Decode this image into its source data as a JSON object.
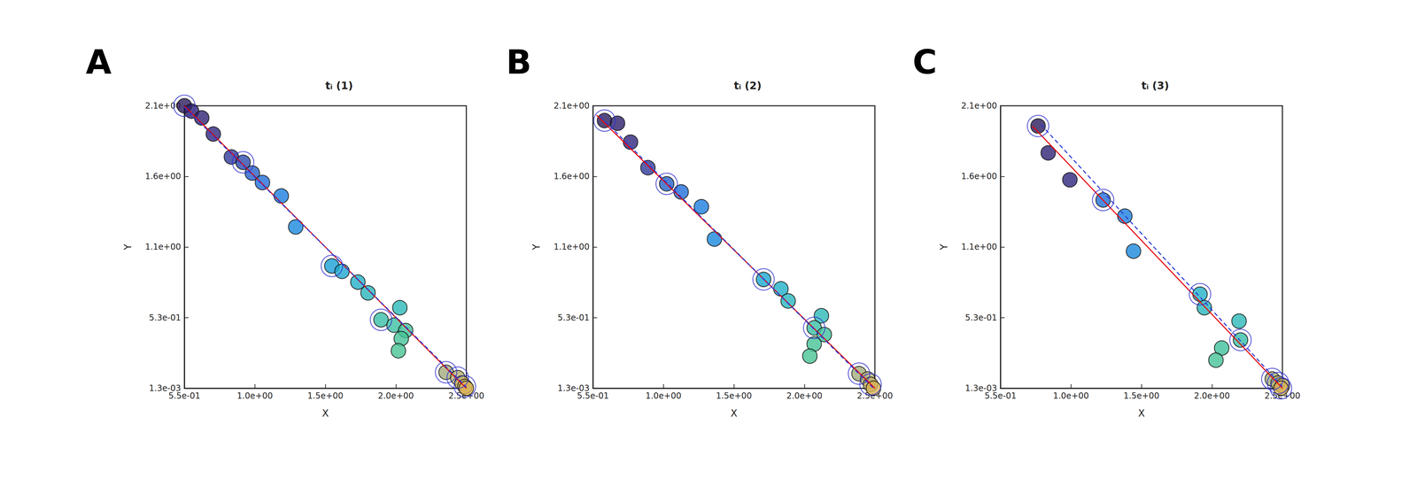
{
  "chart_data": [
    {
      "type": "scatter",
      "title": "tᵢ (1)",
      "annotation": "A",
      "x_label": "X",
      "y_label": "Y",
      "xlim": [
        0.55,
        2.5
      ],
      "ylim": [
        0.0013,
        2.1
      ],
      "xticks": [
        {
          "value": 0.55,
          "label": "5.5e-01"
        },
        {
          "value": 1.0375,
          "label": "1.0e+00"
        },
        {
          "value": 1.525,
          "label": "1.5e+00"
        },
        {
          "value": 2.0125,
          "label": "2.0e+00"
        },
        {
          "value": 2.5,
          "label": "2.5e+00"
        }
      ],
      "yticks": [
        {
          "value": 0.0013,
          "label": "1.3e-03"
        },
        {
          "value": 0.526,
          "label": "5.3e-01"
        },
        {
          "value": 1.0507,
          "label": "1.1e+00"
        },
        {
          "value": 1.5753,
          "label": "1.6e+00"
        },
        {
          "value": 2.1,
          "label": "2.1e+00"
        }
      ],
      "series": [
        {
          "type": "scatter",
          "marker": "circle",
          "x": [
            0.55,
            0.6,
            0.67,
            0.75,
            0.875,
            0.956,
            1.02,
            1.09,
            1.22,
            1.32,
            1.57,
            1.64,
            1.75,
            1.82,
            1.91,
            2.0,
            2.04,
            2.08,
            2.05,
            2.03,
            2.36,
            2.44,
            2.47,
            2.49,
            2.5
          ],
          "values": [
            2.1,
            2.06,
            2.01,
            1.89,
            1.72,
            1.68,
            1.6,
            1.53,
            1.43,
            1.2,
            0.91,
            0.87,
            0.79,
            0.71,
            0.51,
            0.47,
            0.6,
            0.43,
            0.37,
            0.28,
            0.12,
            0.08,
            0.04,
            0.015,
            0.0013
          ],
          "colors": [
            "#2a1b5e",
            "#2d1f6c",
            "#2e2274",
            "#30267e",
            "#2f3a9a",
            "#2c4aae",
            "#2560c8",
            "#1f6ed8",
            "#1b7ee0",
            "#1a88dd",
            "#1aa0d6",
            "#1ca8d0",
            "#22b0c8",
            "#28b6bd",
            "#38bea8",
            "#3cbfa2",
            "#2cb9b8",
            "#40c19c",
            "#46c397",
            "#48c495",
            "#a3ad7c",
            "#b5b070",
            "#c4b268",
            "#d0b460",
            "#d8b258"
          ]
        },
        {
          "type": "scatter",
          "marker": "ring",
          "color": "#3030d0",
          "x": [
            0.55,
            0.956,
            1.57,
            1.91,
            2.36,
            2.44,
            2.49
          ],
          "values": [
            2.1,
            1.68,
            0.91,
            0.51,
            0.12,
            0.08,
            0.015
          ]
        },
        {
          "type": "line",
          "line_style": "solid",
          "color": "#e8000b",
          "x": [
            0.55,
            2.5
          ],
          "values": [
            2.1,
            0.0013
          ]
        },
        {
          "type": "line",
          "line_style": "dashed",
          "color": "#2a3ad8",
          "x": [
            0.55,
            2.5
          ],
          "values": [
            2.09,
            0.01
          ]
        }
      ]
    },
    {
      "type": "scatter",
      "title": "tᵢ (2)",
      "annotation": "B",
      "x_label": "X",
      "y_label": "Y",
      "xlim": [
        0.55,
        2.5
      ],
      "ylim": [
        0.0013,
        2.1
      ],
      "xticks": [
        {
          "value": 0.55,
          "label": "5.5e-01"
        },
        {
          "value": 1.0375,
          "label": "1.0e+00"
        },
        {
          "value": 1.525,
          "label": "1.5e+00"
        },
        {
          "value": 2.0125,
          "label": "2.0e+00"
        },
        {
          "value": 2.5,
          "label": "2.5e+00"
        }
      ],
      "yticks": [
        {
          "value": 0.0013,
          "label": "1.3e-03"
        },
        {
          "value": 0.526,
          "label": "5.3e-01"
        },
        {
          "value": 1.0507,
          "label": "1.1e+00"
        },
        {
          "value": 1.5753,
          "label": "1.6e+00"
        },
        {
          "value": 2.1,
          "label": "2.1e+00"
        }
      ],
      "series": [
        {
          "type": "scatter",
          "marker": "circle",
          "x": [
            0.63,
            0.72,
            0.81,
            0.93,
            1.06,
            1.16,
            1.3,
            1.39,
            1.73,
            1.85,
            1.9,
            2.13,
            2.08,
            2.15,
            2.08,
            2.05,
            2.39,
            2.45,
            2.47,
            2.49
          ],
          "values": [
            1.99,
            1.97,
            1.83,
            1.64,
            1.52,
            1.46,
            1.35,
            1.11,
            0.81,
            0.74,
            0.65,
            0.54,
            0.45,
            0.4,
            0.33,
            0.24,
            0.11,
            0.07,
            0.03,
            0.0013
          ],
          "colors": [
            "#2a1b5e",
            "#2d1f6c",
            "#30267e",
            "#2f3a9a",
            "#2560c8",
            "#1f6ed8",
            "#1b7ee0",
            "#1a88dd",
            "#1ca8d0",
            "#22b0c8",
            "#28b6bd",
            "#2cb9b8",
            "#38bea8",
            "#40c19c",
            "#46c397",
            "#48c495",
            "#a3ad7c",
            "#b5b070",
            "#c4b268",
            "#d8b258"
          ]
        },
        {
          "type": "scatter",
          "marker": "ring",
          "color": "#3030d0",
          "x": [
            0.63,
            1.06,
            1.73,
            2.08,
            2.39,
            2.47
          ],
          "values": [
            1.99,
            1.52,
            0.81,
            0.45,
            0.11,
            0.03
          ]
        },
        {
          "type": "line",
          "line_style": "solid",
          "color": "#e8000b",
          "x": [
            0.575,
            2.5
          ],
          "values": [
            2.03,
            0.0013
          ]
        },
        {
          "type": "line",
          "line_style": "dashed",
          "color": "#2a3ad8",
          "x": [
            0.6,
            2.49
          ],
          "values": [
            2.02,
            0.0013
          ]
        }
      ]
    },
    {
      "type": "scatter",
      "title": "tᵢ (3)",
      "annotation": "C",
      "x_label": "X",
      "y_label": "Y",
      "xlim": [
        0.55,
        2.5
      ],
      "ylim": [
        0.0013,
        2.1
      ],
      "xticks": [
        {
          "value": 0.55,
          "label": "5.5e-01"
        },
        {
          "value": 1.0375,
          "label": "1.0e+00"
        },
        {
          "value": 1.525,
          "label": "1.5e+00"
        },
        {
          "value": 2.0125,
          "label": "2.0e+00"
        },
        {
          "value": 2.5,
          "label": "2.5e+00"
        }
      ],
      "yticks": [
        {
          "value": 0.0013,
          "label": "1.3e-03"
        },
        {
          "value": 0.526,
          "label": "5.3e-01"
        },
        {
          "value": 1.0507,
          "label": "1.1e+00"
        },
        {
          "value": 1.5753,
          "label": "1.6e+00"
        },
        {
          "value": 2.1,
          "label": "2.1e+00"
        }
      ],
      "series": [
        {
          "type": "scatter",
          "marker": "circle",
          "x": [
            0.81,
            0.88,
            1.03,
            1.26,
            1.41,
            1.47,
            1.93,
            1.96,
            2.2,
            2.21,
            2.08,
            2.04,
            2.43,
            2.47,
            2.5,
            2.49
          ],
          "values": [
            1.95,
            1.75,
            1.55,
            1.4,
            1.28,
            1.02,
            0.7,
            0.6,
            0.5,
            0.36,
            0.3,
            0.21,
            0.07,
            0.04,
            0.02,
            0.0013
          ],
          "colors": [
            "#2a1b5e",
            "#2e2274",
            "#30267e",
            "#1f6ed8",
            "#1b7ee0",
            "#1a88dd",
            "#22b0c8",
            "#28b6bd",
            "#2cb9b8",
            "#38bea8",
            "#40c19c",
            "#46c397",
            "#a3ad7c",
            "#b5b070",
            "#c4b268",
            "#d8b258"
          ]
        },
        {
          "type": "scatter",
          "marker": "ring",
          "color": "#3030d0",
          "x": [
            0.81,
            1.26,
            1.93,
            2.21,
            2.43,
            2.47,
            2.49
          ],
          "values": [
            1.95,
            1.4,
            0.7,
            0.36,
            0.07,
            0.04,
            0.0013
          ]
        },
        {
          "type": "line",
          "line_style": "solid",
          "color": "#e8000b",
          "x": [
            0.77,
            2.5
          ],
          "values": [
            1.95,
            0.0013
          ]
        },
        {
          "type": "line",
          "line_style": "dashed",
          "color": "#2a3ad8",
          "x": [
            0.83,
            2.5
          ],
          "values": [
            1.96,
            0.015
          ]
        }
      ]
    }
  ]
}
